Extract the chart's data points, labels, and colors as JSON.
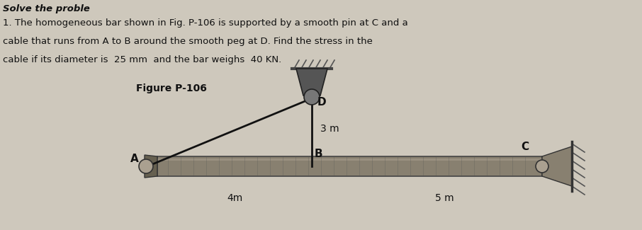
{
  "title_text": "Figure P-106",
  "header_line1": "Solve the proble",
  "header_line2": "1. The homogeneous bar shown in Fig. P-106 is supported by a smooth pin at C and a",
  "header_line3": "cable that runs from A to B around the smooth peg at D. Find the stress in the",
  "header_line4": "cable if its diameter is  25 mm  and the bar weighs  40 KN.",
  "A": [
    0,
    0
  ],
  "B": [
    4,
    0
  ],
  "C": [
    9,
    0
  ],
  "D": [
    4,
    3
  ],
  "dim_4m_label": "4m",
  "dim_5m_label": "5 m",
  "dim_3m_label": "3 m",
  "label_A": "A",
  "label_B": "B",
  "label_C": "C",
  "label_D": "D",
  "bg_color": "#cec8bc",
  "bar_color": "#7a7060",
  "cable_color": "#111111",
  "text_color": "#111111"
}
